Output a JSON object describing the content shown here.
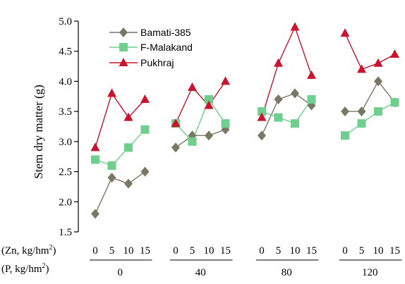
{
  "chart_data": {
    "type": "line",
    "ylabel": "Stem dry matter (g)",
    "ylim": [
      1.5,
      5.0
    ],
    "yticks": [
      "1.5",
      "2.0",
      "2.5",
      "3.0",
      "3.5",
      "4.0",
      "4.5",
      "5.0"
    ],
    "zn_axis_label": "(Zn, kg/hm",
    "p_axis_label": "(P, kg/hm",
    "axis_label_sup": "2",
    "axis_label_close": ")",
    "zn_levels": [
      "0",
      "5",
      "10",
      "15"
    ],
    "p_levels": [
      "0",
      "40",
      "80",
      "120"
    ],
    "legend_position": "top-left",
    "grid": false,
    "series": [
      {
        "name": "Bamati-385",
        "color": "#7a7766",
        "marker": "diamond",
        "groups": [
          [
            1.8,
            2.4,
            2.3,
            2.5
          ],
          [
            2.9,
            3.1,
            3.1,
            3.2
          ],
          [
            3.1,
            3.7,
            3.8,
            3.6
          ],
          [
            3.5,
            3.5,
            4.0,
            3.65
          ]
        ]
      },
      {
        "name": "F-Malakand",
        "color": "#6fcf8f",
        "marker": "square",
        "groups": [
          [
            2.7,
            2.6,
            2.9,
            3.2
          ],
          [
            3.3,
            3.0,
            3.7,
            3.3
          ],
          [
            3.5,
            3.4,
            3.3,
            3.7
          ],
          [
            3.1,
            3.3,
            3.5,
            3.65
          ]
        ]
      },
      {
        "name": "Pukhraj",
        "color": "#c8142d",
        "marker": "triangle",
        "groups": [
          [
            2.9,
            3.8,
            3.4,
            3.7
          ],
          [
            3.3,
            3.9,
            3.6,
            4.0
          ],
          [
            3.4,
            4.3,
            4.9,
            4.1
          ],
          [
            4.8,
            4.2,
            4.3,
            4.45
          ]
        ]
      }
    ]
  }
}
